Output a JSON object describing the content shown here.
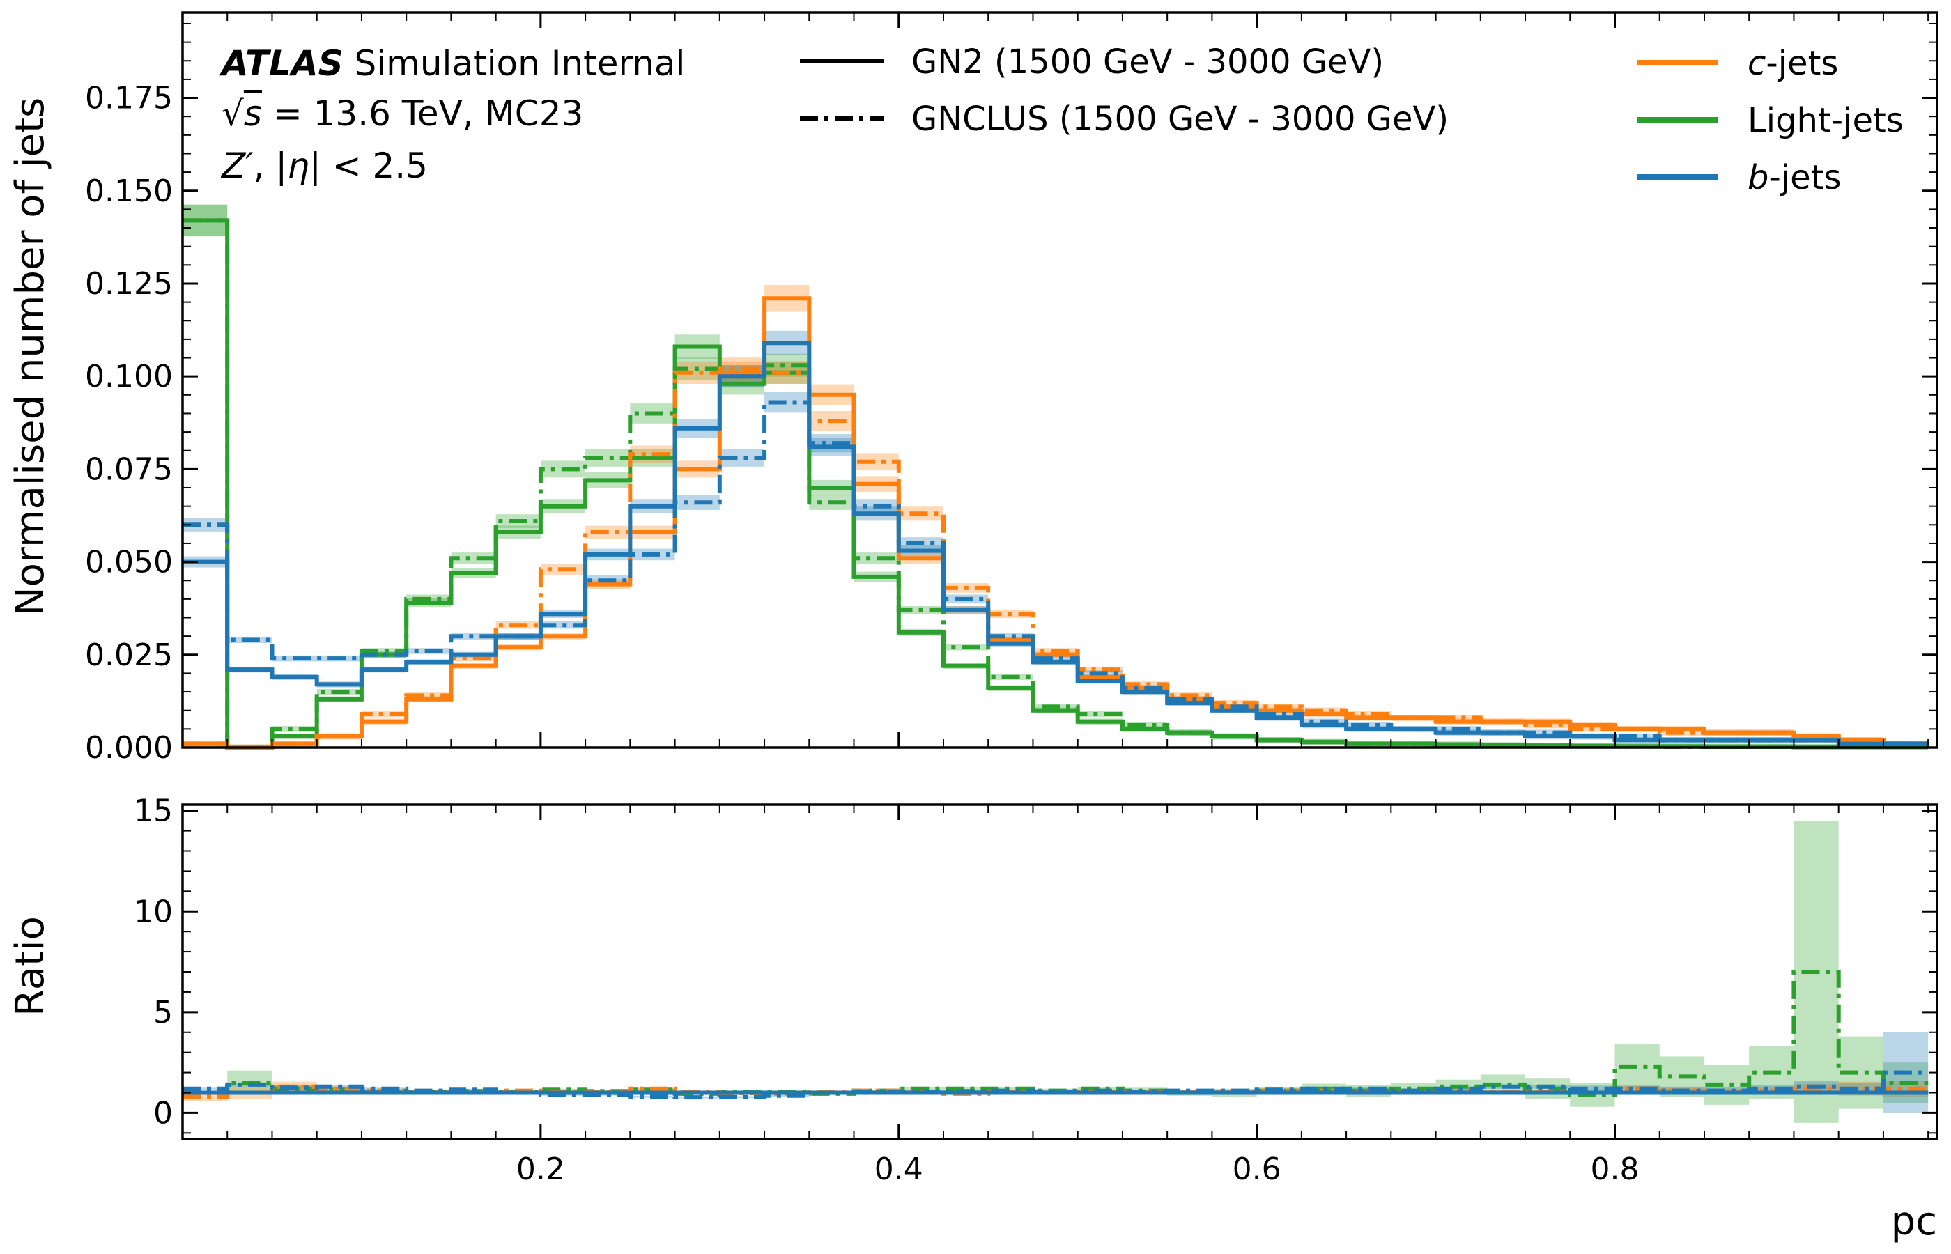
{
  "chart_data": {
    "type": "histogram",
    "bins": {
      "start": 0.0,
      "width": 0.025,
      "count": 39
    },
    "colors": {
      "c": "#ff7f0e",
      "light": "#2ca02c",
      "b": "#1f77b4"
    },
    "atlas": {
      "bold": "ATLAS",
      "rest": " Simulation Internal",
      "line2_sqrt": "√",
      "line2_s": "s",
      "line2_rest": " = 13.6 TeV, MC23",
      "line3_z": "Z′",
      "line3_sep": ", |",
      "line3_eta": "η",
      "line3_rest": "| < 2.5"
    },
    "legend_styles": [
      {
        "label": "GN2 (1500 GeV - 3000 GeV)",
        "style": "solid"
      },
      {
        "label": "GNCLUS (1500 GeV - 3000 GeV)",
        "style": "dashdot"
      }
    ],
    "legend_flavours": [
      {
        "key": "c",
        "italic": "c",
        "label": "-jets"
      },
      {
        "key": "light",
        "italic": "",
        "label": "Light-jets"
      },
      {
        "key": "b",
        "italic": "b",
        "label": "-jets"
      }
    ],
    "top": {
      "ylabel": "Normalised number of jets",
      "ylim": [
        0.0,
        0.198
      ],
      "yticks": [
        "0.000",
        "0.025",
        "0.050",
        "0.075",
        "0.100",
        "0.125",
        "0.150",
        "0.175"
      ],
      "series": [
        {
          "name": "GN2",
          "flavour": "light",
          "style": "solid",
          "values": [
            0.142,
            0.0,
            0.003,
            0.013,
            0.025,
            0.039,
            0.047,
            0.058,
            0.065,
            0.072,
            0.078,
            0.108,
            0.098,
            0.101,
            0.07,
            0.046,
            0.031,
            0.022,
            0.016,
            0.01,
            0.007,
            0.005,
            0.004,
            0.003,
            0.002,
            0.0015,
            0.001,
            0.001,
            0.0008,
            0.0006,
            0.0005,
            0.0004,
            0.0003,
            0.0003,
            0.0002,
            0.0002,
            0.0001,
            0.0001,
            0.0001
          ]
        },
        {
          "name": "GNCLUS",
          "flavour": "light",
          "style": "dashdot",
          "values": [
            0.142,
            0.0,
            0.005,
            0.015,
            0.026,
            0.04,
            0.051,
            0.061,
            0.075,
            0.078,
            0.09,
            0.102,
            0.1,
            0.103,
            0.066,
            0.051,
            0.037,
            0.027,
            0.019,
            0.011,
            0.009,
            0.006,
            0.004,
            0.003,
            0.002,
            0.0015,
            0.001,
            0.001,
            0.0008,
            0.0006,
            0.0005,
            0.0004,
            0.0003,
            0.0002,
            0.0002,
            0.0002,
            0.0001,
            0.0001,
            0.0001
          ]
        },
        {
          "name": "GN2",
          "flavour": "c",
          "style": "solid",
          "values": [
            0.001,
            0.0,
            0.001,
            0.003,
            0.007,
            0.013,
            0.022,
            0.027,
            0.03,
            0.044,
            0.058,
            0.075,
            0.101,
            0.121,
            0.095,
            0.071,
            0.051,
            0.037,
            0.029,
            0.025,
            0.019,
            0.016,
            0.013,
            0.011,
            0.01,
            0.009,
            0.008,
            0.008,
            0.007,
            0.007,
            0.007,
            0.006,
            0.005,
            0.005,
            0.004,
            0.004,
            0.003,
            0.002,
            0.001
          ]
        },
        {
          "name": "GNCLUS",
          "flavour": "c",
          "style": "dashdot",
          "values": [
            0.001,
            0.0,
            0.001,
            0.003,
            0.009,
            0.014,
            0.024,
            0.033,
            0.048,
            0.058,
            0.079,
            0.101,
            0.102,
            0.101,
            0.088,
            0.077,
            0.063,
            0.043,
            0.036,
            0.026,
            0.021,
            0.017,
            0.014,
            0.012,
            0.011,
            0.01,
            0.009,
            0.008,
            0.008,
            0.007,
            0.006,
            0.005,
            0.005,
            0.004,
            0.004,
            0.004,
            0.003,
            0.002,
            0.001
          ]
        },
        {
          "name": "GN2",
          "flavour": "b",
          "style": "solid",
          "values": [
            0.05,
            0.021,
            0.019,
            0.017,
            0.021,
            0.023,
            0.025,
            0.03,
            0.036,
            0.052,
            0.065,
            0.086,
            0.1,
            0.109,
            0.081,
            0.063,
            0.053,
            0.037,
            0.028,
            0.023,
            0.018,
            0.015,
            0.012,
            0.01,
            0.008,
            0.006,
            0.005,
            0.005,
            0.004,
            0.004,
            0.003,
            0.003,
            0.002,
            0.002,
            0.002,
            0.002,
            0.002,
            0.001,
            0.001
          ]
        },
        {
          "name": "GNCLUS",
          "flavour": "b",
          "style": "dashdot",
          "values": [
            0.06,
            0.029,
            0.024,
            0.024,
            0.025,
            0.026,
            0.03,
            0.03,
            0.033,
            0.045,
            0.052,
            0.066,
            0.078,
            0.093,
            0.082,
            0.065,
            0.055,
            0.04,
            0.03,
            0.024,
            0.02,
            0.016,
            0.013,
            0.011,
            0.009,
            0.007,
            0.006,
            0.005,
            0.005,
            0.004,
            0.004,
            0.003,
            0.003,
            0.002,
            0.002,
            0.002,
            0.002,
            0.001,
            0.001
          ]
        }
      ]
    },
    "ratio": {
      "ylabel": "Ratio",
      "xlabel": "pc",
      "ylim": [
        -1.3,
        15.3
      ],
      "yticks": [
        "0",
        "5",
        "10",
        "15"
      ],
      "xticks": [
        "0.2",
        "0.4",
        "0.6",
        "0.8"
      ],
      "xlim": [
        0.0,
        0.98
      ],
      "series": [
        {
          "name": "GN2",
          "flavour": "light",
          "style": "solid",
          "values": [
            1,
            1,
            1,
            1,
            1,
            1,
            1,
            1,
            1,
            1,
            1,
            1,
            1,
            1,
            1,
            1,
            1,
            1,
            1,
            1,
            1,
            1,
            1,
            1,
            1,
            1,
            1,
            1,
            1,
            1,
            1,
            1,
            1,
            1,
            1,
            1,
            1,
            1,
            1
          ]
        },
        {
          "name": "GNCLUS",
          "flavour": "light",
          "style": "dashdot",
          "values": [
            1.0,
            1.5,
            1.2,
            1.15,
            1.05,
            1.02,
            1.08,
            1.05,
            1.15,
            1.08,
            1.15,
            0.95,
            1.02,
            1.02,
            0.95,
            1.1,
            1.2,
            1.2,
            1.2,
            1.1,
            1.2,
            1.1,
            1.0,
            1.0,
            1.1,
            1.2,
            1.1,
            1.2,
            1.3,
            1.4,
            1.2,
            0.9,
            2.3,
            1.8,
            1.4,
            2.0,
            7.0,
            2.0,
            1.5
          ],
          "err": [
            0.1,
            0.6,
            0.2,
            0.1,
            0.05,
            0.05,
            0.05,
            0.05,
            0.05,
            0.05,
            0.05,
            0.05,
            0.05,
            0.05,
            0.05,
            0.05,
            0.1,
            0.1,
            0.1,
            0.1,
            0.1,
            0.15,
            0.15,
            0.2,
            0.2,
            0.25,
            0.3,
            0.3,
            0.35,
            0.5,
            0.5,
            0.6,
            1.1,
            1.0,
            1.0,
            1.3,
            7.5,
            1.8,
            1.0
          ]
        },
        {
          "name": "GN2",
          "flavour": "c",
          "style": "solid",
          "values": [
            1,
            1,
            1,
            1,
            1,
            1,
            1,
            1,
            1,
            1,
            1,
            1,
            1,
            1,
            1,
            1,
            1,
            1,
            1,
            1,
            1,
            1,
            1,
            1,
            1,
            1,
            1,
            1,
            1,
            1,
            1,
            1,
            1,
            1,
            1,
            1,
            1,
            1,
            1
          ]
        },
        {
          "name": "GNCLUS",
          "flavour": "c",
          "style": "dashdot",
          "values": [
            0.8,
            1.0,
            1.3,
            1.2,
            1.1,
            1.05,
            1.05,
            1.1,
            1.05,
            1.05,
            1.2,
            1.02,
            0.98,
            0.95,
            1.05,
            1.1,
            1.05,
            0.95,
            1.05,
            1.0,
            1.05,
            1.05,
            1.05,
            1.05,
            1.1,
            1.1,
            1.05,
            1.02,
            1.1,
            1.05,
            1.05,
            1.0,
            1.2,
            1.1,
            1.05,
            1.1,
            1.2,
            1.2,
            1.2
          ],
          "err": [
            0.2,
            0.3,
            0.25,
            0.1,
            0.05,
            0.05,
            0.05,
            0.05,
            0.05,
            0.05,
            0.05,
            0.05,
            0.05,
            0.05,
            0.05,
            0.05,
            0.05,
            0.05,
            0.05,
            0.05,
            0.05,
            0.05,
            0.05,
            0.05,
            0.05,
            0.05,
            0.05,
            0.1,
            0.1,
            0.1,
            0.1,
            0.1,
            0.15,
            0.15,
            0.15,
            0.2,
            0.25,
            0.35,
            0.4
          ]
        },
        {
          "name": "GN2",
          "flavour": "b",
          "style": "solid",
          "values": [
            1,
            1,
            1,
            1,
            1,
            1,
            1,
            1,
            1,
            1,
            1,
            1,
            1,
            1,
            1,
            1,
            1,
            1,
            1,
            1,
            1,
            1,
            1,
            1,
            1,
            1,
            1,
            1,
            1,
            1,
            1,
            1,
            1,
            1,
            1,
            1,
            1,
            1,
            1
          ]
        },
        {
          "name": "GNCLUS",
          "flavour": "b",
          "style": "dashdot",
          "values": [
            1.2,
            1.4,
            1.25,
            1.3,
            1.2,
            1.1,
            1.15,
            1.0,
            0.9,
            0.9,
            0.8,
            0.77,
            0.78,
            0.85,
            1.0,
            1.05,
            1.05,
            1.08,
            1.1,
            1.05,
            1.1,
            1.05,
            1.1,
            1.1,
            1.15,
            1.2,
            1.2,
            1.1,
            1.2,
            1.3,
            1.3,
            1.2,
            1.2,
            1.1,
            1.1,
            1.2,
            1.3,
            1.2,
            2.0
          ],
          "err": [
            0.05,
            0.1,
            0.1,
            0.1,
            0.05,
            0.05,
            0.05,
            0.05,
            0.05,
            0.05,
            0.05,
            0.05,
            0.05,
            0.05,
            0.05,
            0.05,
            0.05,
            0.05,
            0.05,
            0.05,
            0.05,
            0.05,
            0.05,
            0.05,
            0.05,
            0.05,
            0.1,
            0.1,
            0.1,
            0.1,
            0.1,
            0.15,
            0.15,
            0.2,
            0.2,
            0.2,
            0.3,
            0.3,
            2.0
          ]
        }
      ]
    }
  }
}
